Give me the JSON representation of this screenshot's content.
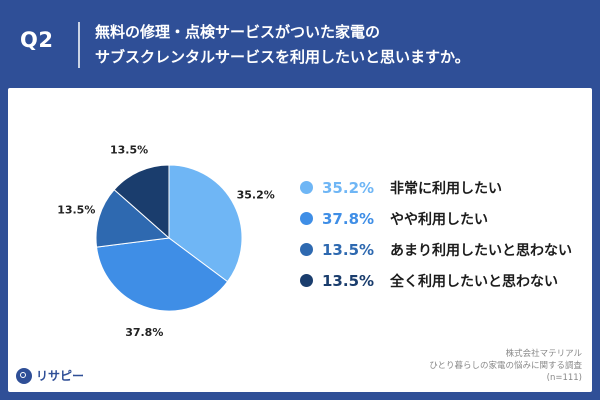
{
  "question": {
    "label": "Q2",
    "line1": "無料の修理・点検サービスがついた家電の",
    "line2": "サブスクレンタルサービスを利用したいと思いますか。"
  },
  "colors": {
    "background": "#2f4f97",
    "series": [
      "#6fb6f5",
      "#3f8ee6",
      "#2e69b0",
      "#1a3d6d"
    ]
  },
  "chart_data": {
    "type": "pie",
    "categories": [
      "非常に利用したい",
      "やや利用したい",
      "あまり利用したいと思わない",
      "全く利用したいと思わない"
    ],
    "values": [
      35.2,
      37.8,
      13.5,
      13.5
    ],
    "value_labels": [
      "35.2%",
      "37.8%",
      "13.5%",
      "13.5%"
    ],
    "start": "12 o'clock",
    "direction": "clockwise",
    "legend_position": "right"
  },
  "footer": {
    "line1": "株式会社マテリアル",
    "line2": "ひとり暮らしの家電の悩みに関する調査",
    "line3": "(n=111)"
  },
  "logo": {
    "text": "リサピー"
  }
}
